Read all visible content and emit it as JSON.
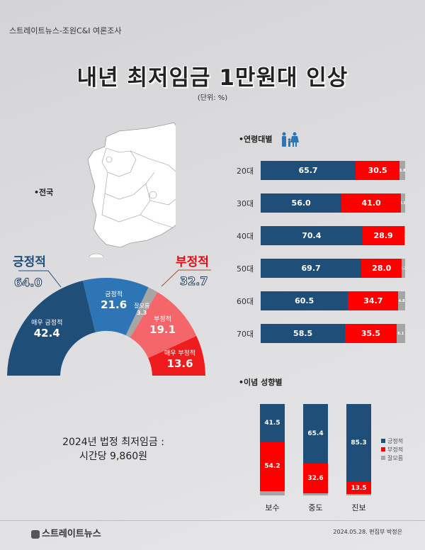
{
  "header": {
    "source": "스트레이트뉴스-조원C&I 여론조사",
    "title": "내년 최저임금 1만원대 인상",
    "unit": "(단위: %)"
  },
  "national": {
    "label": "•전국",
    "positive_title": "긍정적",
    "positive_total": "64.0",
    "negative_title": "부정적",
    "negative_total": "32.7",
    "segments": [
      {
        "label": "매우 긍정적",
        "value": "42.4",
        "color": "#1f4e79"
      },
      {
        "label": "긍정적",
        "value": "21.6",
        "color": "#2e75b6"
      },
      {
        "label": "잘모름",
        "value": "3.3",
        "color": "#a6a6a6"
      },
      {
        "label": "부정적",
        "value": "19.1",
        "color": "#f4666a"
      },
      {
        "label": "매우 부정적",
        "value": "13.6",
        "color": "#ee1c1c"
      }
    ]
  },
  "min_wage": {
    "line1": "2024년 법정 최저임금 :",
    "line2": "시간당 9,860원"
  },
  "age_section": {
    "title": "•연령대별",
    "icon": "family-icon"
  },
  "ideology_section": {
    "title": "•이념 성향별"
  },
  "legend": [
    "긍정적",
    "부정적",
    "잘모름"
  ],
  "colors": {
    "positive": "#1f4e79",
    "negative": "#ff0000",
    "unknown": "#a6a6a6"
  },
  "footer": {
    "logo": "스트레이트뉴스",
    "credit": "2024.05.28. 편집부 박정은"
  },
  "chart_data": [
    {
      "type": "pie",
      "title": "전국",
      "categories": [
        "매우 긍정적",
        "긍정적",
        "잘모름",
        "부정적",
        "매우 부정적"
      ],
      "values": [
        42.4,
        21.6,
        3.3,
        19.1,
        13.6
      ],
      "annotations": {
        "긍정적": 64.0,
        "부정적": 32.7
      }
    },
    {
      "type": "bar",
      "title": "연령대별",
      "orientation": "horizontal-stacked",
      "categories": [
        "20대",
        "30대",
        "40대",
        "50대",
        "60대",
        "70대"
      ],
      "series": [
        {
          "name": "긍정적",
          "values": [
            65.7,
            56.0,
            70.4,
            69.7,
            60.5,
            58.5
          ]
        },
        {
          "name": "부정적",
          "values": [
            30.5,
            41.0,
            28.9,
            28.0,
            34.7,
            35.5
          ]
        },
        {
          "name": "잘모름",
          "values": [
            3.8,
            2.9,
            0.7,
            2.2,
            4.8,
            6.1
          ]
        }
      ]
    },
    {
      "type": "bar",
      "title": "이념 성향별",
      "orientation": "vertical-stacked",
      "categories": [
        "보수",
        "중도",
        "진보"
      ],
      "series": [
        {
          "name": "긍정적",
          "values": [
            41.5,
            65.4,
            85.3
          ]
        },
        {
          "name": "부정적",
          "values": [
            54.2,
            32.6,
            13.5
          ]
        },
        {
          "name": "잘모름",
          "values": [
            4.3,
            2.0,
            1.2
          ]
        }
      ],
      "legend_position": "right"
    }
  ]
}
